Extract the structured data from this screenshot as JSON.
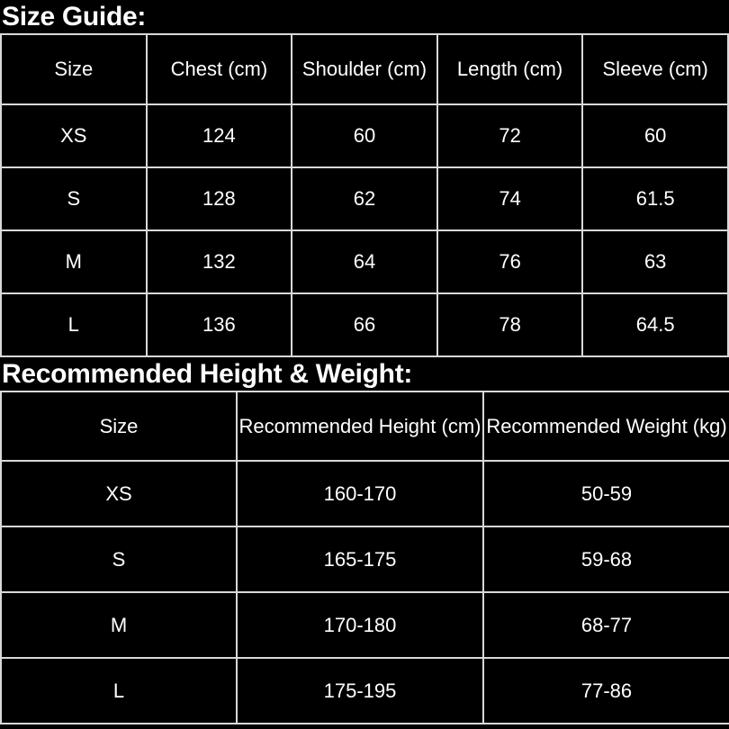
{
  "page": {
    "background_color": "#000000",
    "text_color": "#ffffff",
    "border_color": "#d9d9d9"
  },
  "size_guide": {
    "heading": "Size Guide:",
    "table": {
      "headers": [
        "Size",
        "Chest (cm)",
        "Shoulder (cm)",
        "Length (cm)",
        "Sleeve (cm)"
      ],
      "rows": [
        [
          "XS",
          "124",
          "60",
          "72",
          "60"
        ],
        [
          "S",
          "128",
          "62",
          "74",
          "61.5"
        ],
        [
          "M",
          "132",
          "64",
          "76",
          "63"
        ],
        [
          "L",
          "136",
          "66",
          "78",
          "64.5"
        ]
      ]
    }
  },
  "height_weight": {
    "heading": "Recommended Height & Weight:",
    "table": {
      "headers": [
        "Size",
        "Recommended Height (cm)",
        "Recommended Weight (kg)"
      ],
      "rows": [
        [
          "XS",
          "160-170",
          "50-59"
        ],
        [
          "S",
          "165-175",
          "59-68"
        ],
        [
          "M",
          "170-180",
          "68-77"
        ],
        [
          "L",
          "175-195",
          "77-86"
        ]
      ]
    }
  }
}
